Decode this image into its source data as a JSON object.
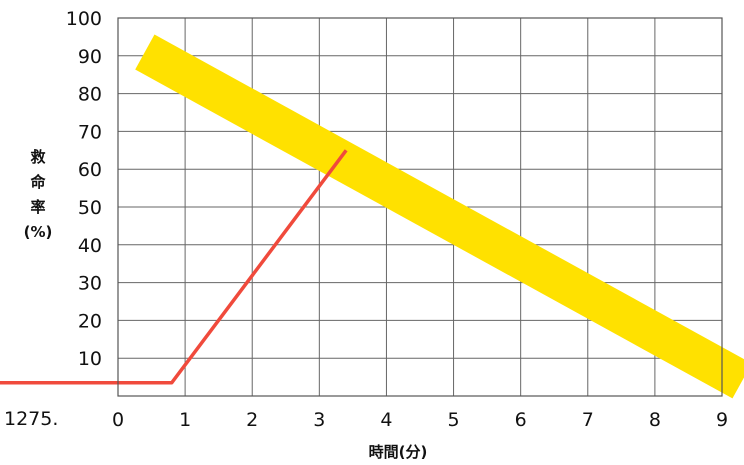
{
  "chart_data": {
    "type": "line",
    "xlabel": "時間(分)",
    "ylabel": [
      "救",
      "命",
      "率",
      "(%)"
    ],
    "xlim": [
      0,
      9
    ],
    "ylim": [
      0,
      100
    ],
    "x_ticks": [
      "0",
      "1",
      "2",
      "3",
      "4",
      "5",
      "6",
      "7",
      "8",
      "9"
    ],
    "y_ticks": [
      "10",
      "20",
      "30",
      "40",
      "50",
      "60",
      "70",
      "80",
      "90",
      "100"
    ],
    "extra_x_label": "1275.",
    "grid": true,
    "series": [
      {
        "type": "line",
        "color": "#f04a3c",
        "x": [
          -1.9,
          0.8,
          3.4
        ],
        "y": [
          3.5,
          3.5,
          65
        ]
      }
    ],
    "bands": [
      {
        "type": "band",
        "color": "#ffe100",
        "start": [
          0.4,
          91
        ],
        "end": [
          9.3,
          4
        ]
      }
    ]
  }
}
